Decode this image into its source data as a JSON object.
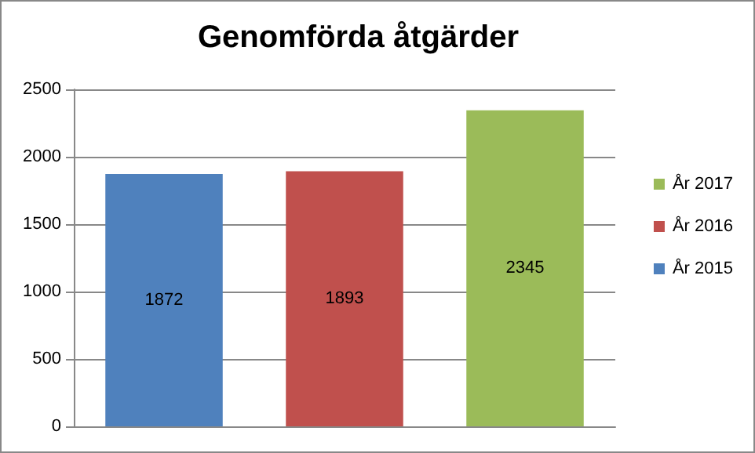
{
  "chart_data": {
    "type": "bar",
    "title": "Genomförda åtgärder",
    "categories": [
      null,
      null,
      null
    ],
    "series": [
      {
        "name": "År 2015",
        "color": "#4f81bd",
        "values": [
          1872,
          null,
          null
        ]
      },
      {
        "name": "År 2016",
        "color": "#c0504d",
        "values": [
          null,
          1893,
          null
        ]
      },
      {
        "name": "År 2017",
        "color": "#9bbb59",
        "values": [
          null,
          null,
          2345
        ]
      }
    ],
    "ylim": [
      0,
      2500
    ],
    "yticks": [
      0,
      500,
      1000,
      1500,
      2000,
      2500
    ],
    "grid": "y",
    "legend": "right",
    "data_labels": true
  }
}
